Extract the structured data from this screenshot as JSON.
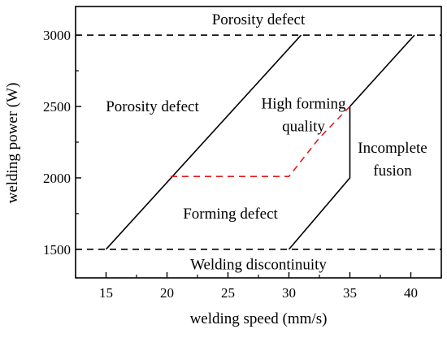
{
  "chart_data": {
    "type": "line",
    "xlabel": "welding speed (mm/s)",
    "ylabel": "welding power (W)",
    "xlim": [
      12.5,
      42.5
    ],
    "ylim": [
      1300,
      3200
    ],
    "xticks": [
      15,
      20,
      25,
      30,
      35,
      40
    ],
    "yticks": [
      1500,
      2000,
      2500,
      3000
    ],
    "grid": false,
    "series": [
      {
        "style": "dashed",
        "color": "#000000",
        "x": [
          12.5,
          42.5
        ],
        "y": [
          3000,
          3000
        ]
      },
      {
        "style": "dashed",
        "color": "#000000",
        "x": [
          12.5,
          42.5
        ],
        "y": [
          1500,
          1500
        ]
      },
      {
        "style": "solid",
        "color": "#000000",
        "x": [
          15,
          31
        ],
        "y": [
          1500,
          3000
        ]
      },
      {
        "style": "solid",
        "color": "#000000",
        "x": [
          30,
          35,
          35,
          40.3
        ],
        "y": [
          1500,
          2000,
          2500,
          3000
        ]
      },
      {
        "style": "dashed",
        "color": "#e41a1c",
        "x": [
          20.3,
          30,
          32.5,
          35
        ],
        "y": [
          2010,
          2010,
          2280,
          2500
        ]
      }
    ],
    "annotations": [
      {
        "text": "Porosity defect",
        "x": 27.5,
        "y": 3110
      },
      {
        "text": "Porosity defect",
        "x": 18.8,
        "y": 2500
      },
      {
        "text": "High forming",
        "x": 31.2,
        "y": 2520
      },
      {
        "text": "quality",
        "x": 31.2,
        "y": 2360
      },
      {
        "text": "Incomplete",
        "x": 38.5,
        "y": 2210
      },
      {
        "text": "fusion",
        "x": 38.5,
        "y": 2050
      },
      {
        "text": "Forming defect",
        "x": 25.2,
        "y": 1750
      },
      {
        "text": "Welding discontinuity",
        "x": 27.5,
        "y": 1395
      }
    ]
  }
}
